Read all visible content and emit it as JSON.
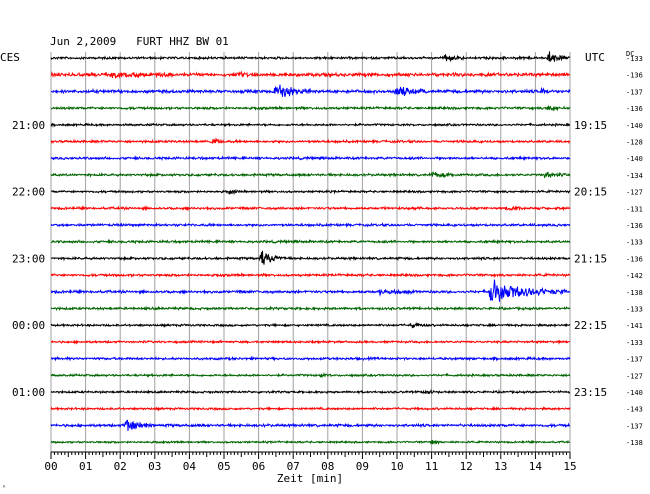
{
  "chart_data": {
    "type": "line",
    "title": "Jun 2,2009   FURT HHZ BW 01",
    "left_axis_label": "CES",
    "right_axis_label": "UTC",
    "dc_label": "DC",
    "xlabel": "Zeit [min]",
    "xlim": [
      0,
      15
    ],
    "x_ticks": [
      "00",
      "01",
      "02",
      "03",
      "04",
      "05",
      "06",
      "07",
      "08",
      "09",
      "10",
      "11",
      "12",
      "13",
      "14",
      "15"
    ],
    "left_time_labels": [
      {
        "trace": 4,
        "label": "21:00"
      },
      {
        "trace": 8,
        "label": "22:00"
      },
      {
        "trace": 12,
        "label": "23:00"
      },
      {
        "trace": 16,
        "label": "00:00"
      },
      {
        "trace": 20,
        "label": "01:00"
      }
    ],
    "right_time_labels": [
      {
        "trace": 4,
        "label": "19:15"
      },
      {
        "trace": 8,
        "label": "20:15"
      },
      {
        "trace": 12,
        "label": "21:15"
      },
      {
        "trace": 16,
        "label": "22:15"
      },
      {
        "trace": 20,
        "label": "23:15"
      }
    ],
    "colors": [
      "#000000",
      "#ff0000",
      "#0000ff",
      "#006400"
    ],
    "series": [
      {
        "dc": "-133",
        "noise": 0.9,
        "events": [
          {
            "x": 11.4,
            "amp": 3,
            "dur": 0.6
          },
          {
            "x": 14.4,
            "amp": 7,
            "dur": 0.7
          }
        ]
      },
      {
        "dc": "-136",
        "noise": 1.3,
        "events": [
          {
            "x": 1.8,
            "amp": 3,
            "dur": 1.6
          },
          {
            "x": 5.5,
            "amp": 4,
            "dur": 0.2
          }
        ]
      },
      {
        "dc": "-137",
        "noise": 1.2,
        "events": [
          {
            "x": 6.5,
            "amp": 11,
            "dur": 1.0
          },
          {
            "x": 10.0,
            "amp": 7,
            "dur": 0.8
          },
          {
            "x": 14.2,
            "amp": 2,
            "dur": 0.5
          }
        ]
      },
      {
        "dc": "-136",
        "noise": 0.9,
        "events": [
          {
            "x": 14.4,
            "amp": 3,
            "dur": 0.5
          }
        ]
      },
      {
        "dc": "-140",
        "noise": 0.8,
        "events": []
      },
      {
        "dc": "-128",
        "noise": 0.9,
        "events": [
          {
            "x": 4.7,
            "amp": 4,
            "dur": 0.3
          }
        ]
      },
      {
        "dc": "-140",
        "noise": 0.9,
        "events": []
      },
      {
        "dc": "-134",
        "noise": 0.9,
        "events": [
          {
            "x": 11.0,
            "amp": 3,
            "dur": 1.0
          },
          {
            "x": 14.3,
            "amp": 4,
            "dur": 0.6
          }
        ]
      },
      {
        "dc": "-127",
        "noise": 0.8,
        "events": [
          {
            "x": 5.2,
            "amp": 3,
            "dur": 0.3
          }
        ]
      },
      {
        "dc": "-131",
        "noise": 0.9,
        "events": [
          {
            "x": 13.2,
            "amp": 3,
            "dur": 0.4
          }
        ]
      },
      {
        "dc": "-136",
        "noise": 0.9,
        "events": []
      },
      {
        "dc": "-133",
        "noise": 0.9,
        "events": []
      },
      {
        "dc": "-136",
        "noise": 0.9,
        "events": [
          {
            "x": 6.1,
            "amp": 9,
            "dur": 0.7
          }
        ]
      },
      {
        "dc": "-142",
        "noise": 0.9,
        "events": []
      },
      {
        "dc": "-138",
        "noise": 1.0,
        "events": [
          {
            "x": 9.5,
            "amp": 3,
            "dur": 1.0
          },
          {
            "x": 12.7,
            "amp": 14,
            "dur": 2.2
          }
        ]
      },
      {
        "dc": "-133",
        "noise": 0.9,
        "events": []
      },
      {
        "dc": "-141",
        "noise": 0.8,
        "events": [
          {
            "x": 10.4,
            "amp": 3,
            "dur": 0.5
          }
        ]
      },
      {
        "dc": "-133",
        "noise": 0.8,
        "events": []
      },
      {
        "dc": "-137",
        "noise": 0.9,
        "events": []
      },
      {
        "dc": "-127",
        "noise": 0.8,
        "events": [
          {
            "x": 7.8,
            "amp": 2,
            "dur": 0.3
          }
        ]
      },
      {
        "dc": "-140",
        "noise": 0.8,
        "events": [
          {
            "x": 10.8,
            "amp": 2,
            "dur": 0.4
          }
        ]
      },
      {
        "dc": "-143",
        "noise": 0.8,
        "events": []
      },
      {
        "dc": "-137",
        "noise": 1.0,
        "events": [
          {
            "x": 2.2,
            "amp": 8,
            "dur": 0.8
          }
        ]
      },
      {
        "dc": "-138",
        "noise": 0.7,
        "events": [
          {
            "x": 11.0,
            "amp": 2,
            "dur": 0.3
          }
        ]
      }
    ]
  },
  "footer_mark": "ⁿ"
}
